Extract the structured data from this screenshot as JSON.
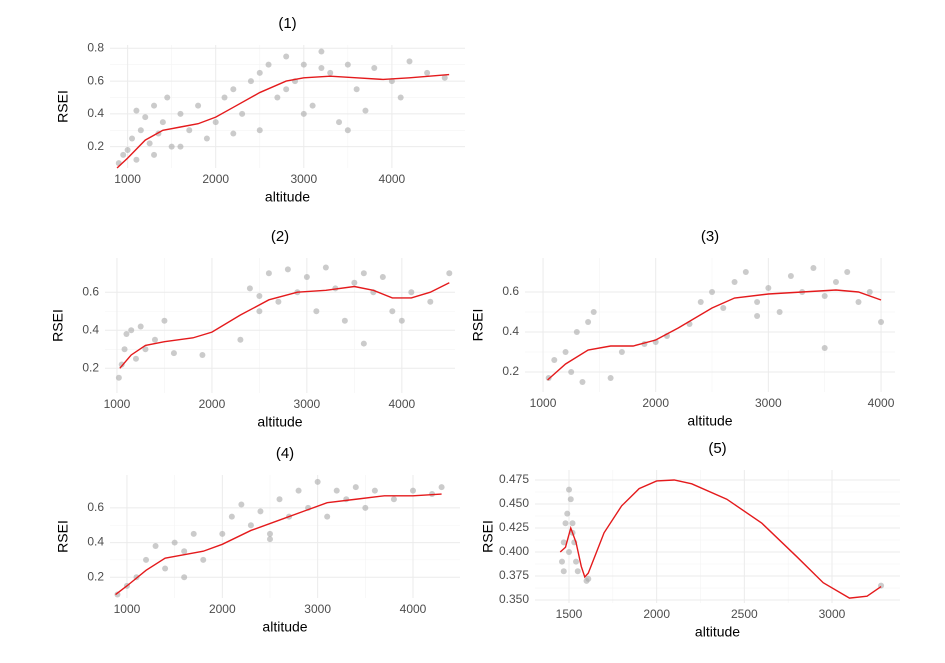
{
  "chart_data": [
    {
      "type": "scatter",
      "title": "(1)",
      "x_label": "altitude",
      "y_label": "RSEI",
      "grid": true,
      "xlim": [
        800,
        4830
      ],
      "ylim": [
        0.07,
        0.82
      ],
      "xticks": [
        1000,
        2000,
        3000,
        4000
      ],
      "yticks": [
        0.2,
        0.4,
        0.6,
        0.8
      ],
      "series": [
        {
          "type": "scatter",
          "color": "#a9a9a9",
          "x": [
            900,
            950,
            1000,
            1050,
            1100,
            1100,
            1150,
            1200,
            1250,
            1300,
            1350,
            1400,
            1450,
            1500,
            1600,
            1700,
            1800,
            1900,
            2000,
            2100,
            2200,
            2300,
            2400,
            2500,
            2600,
            2700,
            2800,
            2900,
            3000,
            3100,
            3200,
            3300,
            3400,
            3500,
            3600,
            3800,
            4000,
            4200,
            4400,
            4600,
            2500,
            3000,
            3500,
            1300,
            1600,
            2200,
            2800,
            3200,
            3700,
            4100
          ],
          "values": [
            0.1,
            0.15,
            0.18,
            0.25,
            0.42,
            0.12,
            0.3,
            0.38,
            0.22,
            0.45,
            0.28,
            0.35,
            0.5,
            0.2,
            0.4,
            0.3,
            0.45,
            0.25,
            0.35,
            0.5,
            0.55,
            0.4,
            0.6,
            0.65,
            0.7,
            0.5,
            0.75,
            0.6,
            0.7,
            0.45,
            0.78,
            0.65,
            0.35,
            0.7,
            0.55,
            0.68,
            0.6,
            0.72,
            0.65,
            0.62,
            0.3,
            0.4,
            0.3,
            0.15,
            0.2,
            0.28,
            0.55,
            0.68,
            0.42,
            0.5
          ]
        },
        {
          "type": "line",
          "color": "#e41a1c",
          "x": [
            880,
            1000,
            1200,
            1400,
            1600,
            1800,
            2000,
            2200,
            2500,
            2800,
            3000,
            3300,
            3600,
            3900,
            4200,
            4650
          ],
          "values": [
            0.07,
            0.13,
            0.24,
            0.3,
            0.32,
            0.34,
            0.38,
            0.44,
            0.53,
            0.6,
            0.62,
            0.63,
            0.62,
            0.61,
            0.62,
            0.64
          ]
        }
      ]
    },
    {
      "type": "scatter",
      "title": "(2)",
      "x_label": "altitude",
      "y_label": "RSEI",
      "grid": true,
      "xlim": [
        874,
        4560
      ],
      "ylim": [
        0.07,
        0.78
      ],
      "xticks": [
        1000,
        2000,
        3000,
        4000
      ],
      "yticks": [
        0.2,
        0.4,
        0.6
      ],
      "series": [
        {
          "type": "scatter",
          "color": "#a9a9a9",
          "x": [
            1020,
            1050,
            1080,
            1100,
            1150,
            1200,
            1250,
            1300,
            1400,
            1500,
            1600,
            1900,
            2300,
            2400,
            2500,
            2600,
            2700,
            2800,
            2900,
            3000,
            3100,
            3200,
            3300,
            3400,
            3500,
            3600,
            3700,
            3800,
            3900,
            4000,
            4100,
            4300,
            4500,
            3600,
            2500
          ],
          "values": [
            0.15,
            0.22,
            0.3,
            0.38,
            0.4,
            0.25,
            0.42,
            0.3,
            0.35,
            0.45,
            0.28,
            0.27,
            0.35,
            0.62,
            0.5,
            0.7,
            0.55,
            0.72,
            0.6,
            0.68,
            0.5,
            0.73,
            0.62,
            0.45,
            0.65,
            0.7,
            0.6,
            0.68,
            0.5,
            0.45,
            0.6,
            0.55,
            0.7,
            0.33,
            0.58
          ]
        },
        {
          "type": "line",
          "color": "#e41a1c",
          "x": [
            1030,
            1150,
            1300,
            1500,
            1800,
            2000,
            2300,
            2600,
            2900,
            3200,
            3500,
            3700,
            3900,
            4100,
            4300,
            4500
          ],
          "values": [
            0.2,
            0.27,
            0.32,
            0.34,
            0.36,
            0.39,
            0.48,
            0.56,
            0.6,
            0.61,
            0.63,
            0.61,
            0.57,
            0.57,
            0.6,
            0.65
          ]
        }
      ]
    },
    {
      "type": "scatter",
      "title": "(3)",
      "x_label": "altitude",
      "y_label": "RSEI",
      "grid": true,
      "xlim": [
        840,
        4124
      ],
      "ylim": [
        0.1,
        0.77
      ],
      "xticks": [
        1000,
        2000,
        3000,
        4000
      ],
      "yticks": [
        0.2,
        0.4,
        0.6
      ],
      "series": [
        {
          "type": "scatter",
          "color": "#a9a9a9",
          "x": [
            1050,
            1100,
            1200,
            1250,
            1300,
            1350,
            1400,
            1450,
            1600,
            1700,
            1900,
            2000,
            2100,
            2300,
            2400,
            2500,
            2600,
            2700,
            2800,
            2900,
            3000,
            3100,
            3200,
            3300,
            3400,
            3500,
            3600,
            3700,
            3800,
            3900,
            4000,
            3500,
            2900
          ],
          "values": [
            0.17,
            0.26,
            0.3,
            0.2,
            0.4,
            0.15,
            0.45,
            0.5,
            0.17,
            0.3,
            0.34,
            0.35,
            0.38,
            0.44,
            0.55,
            0.6,
            0.52,
            0.65,
            0.7,
            0.55,
            0.62,
            0.5,
            0.68,
            0.6,
            0.72,
            0.58,
            0.65,
            0.7,
            0.55,
            0.6,
            0.45,
            0.32,
            0.48
          ]
        },
        {
          "type": "line",
          "color": "#e41a1c",
          "x": [
            1040,
            1200,
            1400,
            1600,
            1800,
            2000,
            2200,
            2500,
            2700,
            3000,
            3300,
            3600,
            3800,
            4000
          ],
          "values": [
            0.16,
            0.24,
            0.31,
            0.33,
            0.33,
            0.36,
            0.42,
            0.52,
            0.57,
            0.59,
            0.6,
            0.61,
            0.6,
            0.56
          ]
        }
      ]
    },
    {
      "type": "scatter",
      "title": "(4)",
      "x_label": "altitude",
      "y_label": "RSEI",
      "grid": true,
      "xlim": [
        822,
        4493
      ],
      "ylim": [
        0.08,
        0.79
      ],
      "xticks": [
        1000,
        2000,
        3000,
        4000
      ],
      "yticks": [
        0.2,
        0.4,
        0.6
      ],
      "series": [
        {
          "type": "scatter",
          "color": "#a9a9a9",
          "x": [
            900,
            1000,
            1100,
            1200,
            1300,
            1400,
            1500,
            1600,
            1700,
            1800,
            2000,
            2100,
            2200,
            2300,
            2400,
            2500,
            2600,
            2700,
            2800,
            2900,
            3000,
            3100,
            3200,
            3300,
            3400,
            3500,
            3600,
            3800,
            4000,
            4200,
            4300,
            1600,
            2500
          ],
          "values": [
            0.1,
            0.15,
            0.2,
            0.3,
            0.38,
            0.25,
            0.4,
            0.35,
            0.45,
            0.3,
            0.45,
            0.55,
            0.62,
            0.5,
            0.58,
            0.45,
            0.65,
            0.55,
            0.7,
            0.6,
            0.75,
            0.55,
            0.7,
            0.65,
            0.72,
            0.6,
            0.7,
            0.65,
            0.7,
            0.68,
            0.72,
            0.2,
            0.42
          ]
        },
        {
          "type": "line",
          "color": "#e41a1c",
          "x": [
            880,
            1000,
            1200,
            1400,
            1600,
            1800,
            2000,
            2300,
            2600,
            2900,
            3100,
            3400,
            3700,
            4000,
            4300
          ],
          "values": [
            0.1,
            0.15,
            0.24,
            0.31,
            0.33,
            0.35,
            0.39,
            0.47,
            0.53,
            0.59,
            0.63,
            0.65,
            0.67,
            0.67,
            0.68
          ]
        }
      ]
    },
    {
      "type": "scatter",
      "title": "(5)",
      "x_label": "altitude",
      "y_label": "RSEI",
      "grid": true,
      "xlim": [
        1306,
        3388
      ],
      "ylim": [
        0.3469,
        0.4854
      ],
      "xticks": [
        1500,
        2000,
        2500,
        3000
      ],
      "yticks": [
        {
          "value": 0.35,
          "label": "0.350"
        },
        0.375,
        {
          "value": 0.4,
          "label": "0.400"
        },
        0.425,
        {
          "value": 0.45,
          "label": "0.450"
        },
        0.475
      ],
      "series": [
        {
          "type": "scatter",
          "color": "#a9a9a9",
          "x": [
            1460,
            1470,
            1480,
            1490,
            1500,
            1510,
            1520,
            1530,
            1540,
            1550,
            1470,
            1500,
            1520,
            1600,
            1610,
            3280
          ],
          "values": [
            0.39,
            0.41,
            0.43,
            0.44,
            0.465,
            0.455,
            0.42,
            0.41,
            0.39,
            0.38,
            0.38,
            0.4,
            0.43,
            0.37,
            0.372,
            0.365
          ]
        },
        {
          "type": "line",
          "color": "#e41a1c",
          "x": [
            1450,
            1480,
            1510,
            1540,
            1570,
            1590,
            1610,
            1700,
            1800,
            1900,
            2000,
            2100,
            2200,
            2400,
            2600,
            2800,
            2950,
            3100,
            3200,
            3280
          ],
          "values": [
            0.4,
            0.405,
            0.425,
            0.41,
            0.385,
            0.374,
            0.378,
            0.42,
            0.448,
            0.466,
            0.474,
            0.475,
            0.471,
            0.455,
            0.43,
            0.395,
            0.368,
            0.352,
            0.354,
            0.364
          ]
        }
      ]
    }
  ]
}
